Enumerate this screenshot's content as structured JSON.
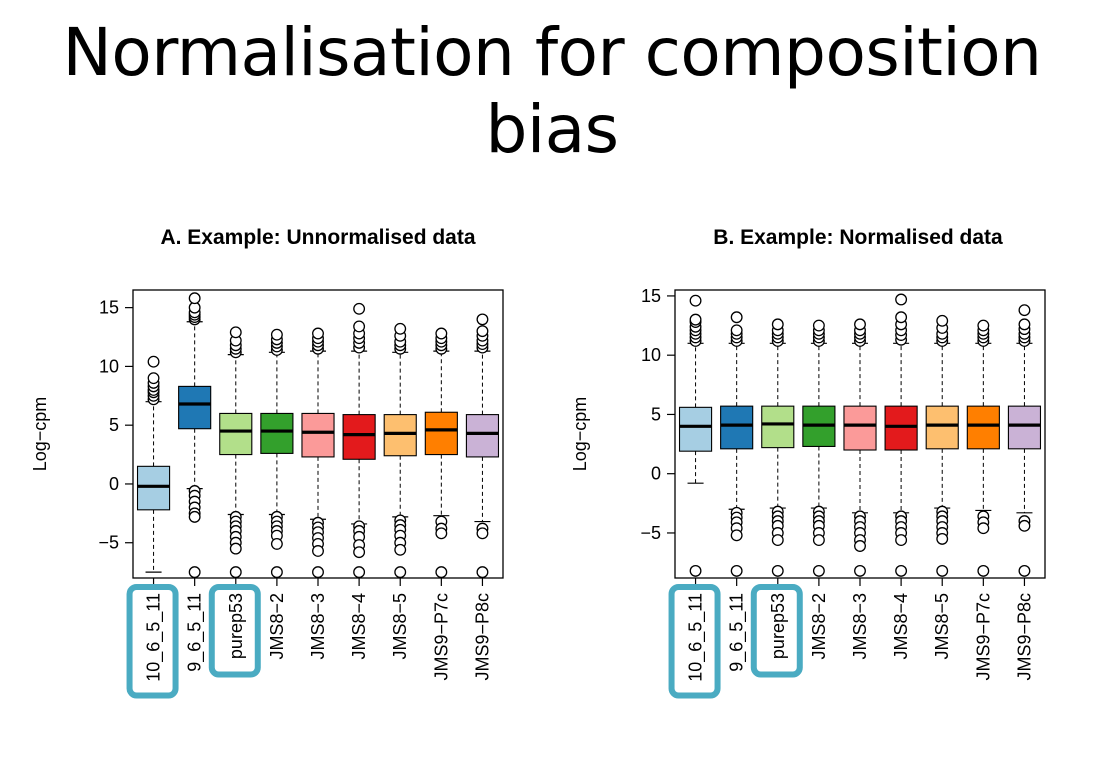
{
  "slide": {
    "title": "Normalisation for composition bias"
  },
  "chart_data": [
    {
      "type": "boxplot",
      "title": "A. Example: Unnormalised data",
      "ylabel": "Log−cpm",
      "xlabel": "",
      "ylim": [
        -8,
        16.5
      ],
      "yticks": [
        -5,
        0,
        5,
        10,
        15
      ],
      "ytick_labels": [
        "−5",
        "0",
        "5",
        "10",
        "15"
      ],
      "grid": false,
      "highlighted_categories": [
        "10_6_5_11",
        "purep53"
      ],
      "highlight_color": "#4aabc2",
      "categories": [
        "10_6_5_11",
        "9_6_5_11",
        "purep53",
        "JMS8−2",
        "JMS8−3",
        "JMS8−4",
        "JMS8−5",
        "JMS9−P7c",
        "JMS9−P8c"
      ],
      "colors": [
        "#a6cee3",
        "#1f78b4",
        "#b2df8a",
        "#33a02c",
        "#fb9a99",
        "#e31a1c",
        "#fdbf6f",
        "#ff7f00",
        "#cab2d6"
      ],
      "series": [
        {
          "q1": -2.2,
          "median": -0.2,
          "q3": 1.5,
          "whisker_low": -7.5,
          "whisker_high": 7.0,
          "outliers_high": [
            7.2,
            7.5,
            7.8,
            8.0,
            8.3,
            8.6,
            9.0,
            10.4
          ],
          "outliers_low": []
        },
        {
          "q1": 4.7,
          "median": 6.8,
          "q3": 8.3,
          "whisker_low": -0.4,
          "whisker_high": 13.8,
          "outliers_high": [
            14.0,
            14.2,
            14.4,
            14.6,
            15.0,
            15.8
          ],
          "outliers_low": [
            -0.6,
            -1.0,
            -1.5,
            -2.0,
            -2.5,
            -2.8,
            -7.5
          ]
        },
        {
          "q1": 2.5,
          "median": 4.5,
          "q3": 6.0,
          "whisker_low": -2.6,
          "whisker_high": 11.0,
          "outliers_high": [
            11.2,
            11.5,
            11.8,
            12.2,
            12.9
          ],
          "outliers_low": [
            -2.8,
            -3.2,
            -3.6,
            -4.0,
            -4.5,
            -5.0,
            -5.5,
            -7.5
          ]
        },
        {
          "q1": 2.6,
          "median": 4.5,
          "q3": 6.0,
          "whisker_low": -2.6,
          "whisker_high": 11.2,
          "outliers_high": [
            11.4,
            11.7,
            12.0,
            12.3,
            12.7
          ],
          "outliers_low": [
            -2.8,
            -3.2,
            -3.6,
            -4.0,
            -4.4,
            -5.1,
            -7.5
          ]
        },
        {
          "q1": 2.3,
          "median": 4.4,
          "q3": 6.0,
          "whisker_low": -3.0,
          "whisker_high": 11.3,
          "outliers_high": [
            11.5,
            11.8,
            12.1,
            12.4,
            12.8
          ],
          "outliers_low": [
            -3.3,
            -3.7,
            -4.1,
            -4.6,
            -5.1,
            -5.7,
            -7.5
          ]
        },
        {
          "q1": 2.1,
          "median": 4.2,
          "q3": 5.9,
          "whisker_low": -3.4,
          "whisker_high": 11.3,
          "outliers_high": [
            11.6,
            12.0,
            12.4,
            12.8,
            13.4,
            14.9
          ],
          "outliers_low": [
            -3.6,
            -4.0,
            -4.5,
            -5.2,
            -5.8,
            -7.5
          ]
        },
        {
          "q1": 2.4,
          "median": 4.3,
          "q3": 5.9,
          "whisker_low": -2.8,
          "whisker_high": 11.2,
          "outliers_high": [
            11.5,
            11.8,
            12.1,
            12.6,
            13.2
          ],
          "outliers_low": [
            -3.1,
            -3.5,
            -3.9,
            -4.4,
            -5.0,
            -5.6,
            -7.5
          ]
        },
        {
          "q1": 2.5,
          "median": 4.6,
          "q3": 6.1,
          "whisker_low": -2.7,
          "whisker_high": 11.3,
          "outliers_high": [
            11.5,
            11.8,
            12.1,
            12.4,
            12.8
          ],
          "outliers_low": [
            -3.2,
            -3.8,
            -4.2,
            -7.5
          ]
        },
        {
          "q1": 2.3,
          "median": 4.3,
          "q3": 5.9,
          "whisker_low": -3.2,
          "whisker_high": 11.3,
          "outliers_high": [
            11.6,
            11.9,
            12.2,
            12.6,
            13.0,
            14.0
          ],
          "outliers_low": [
            -3.8,
            -4.2,
            -7.5
          ]
        }
      ]
    },
    {
      "type": "boxplot",
      "title": "B. Example: Normalised data",
      "ylabel": "Log−cpm",
      "xlabel": "",
      "ylim": [
        -8.8,
        15.5
      ],
      "yticks": [
        -5,
        0,
        5,
        10,
        15
      ],
      "ytick_labels": [
        "−5",
        "0",
        "5",
        "10",
        "15"
      ],
      "grid": false,
      "highlighted_categories": [
        "10_6_5_11",
        "purep53"
      ],
      "highlight_color": "#4aabc2",
      "categories": [
        "10_6_5_11",
        "9_6_5_11",
        "purep53",
        "JMS8−2",
        "JMS8−3",
        "JMS8−4",
        "JMS8−5",
        "JMS9−P7c",
        "JMS9−P8c"
      ],
      "colors": [
        "#a6cee3",
        "#1f78b4",
        "#b2df8a",
        "#33a02c",
        "#fb9a99",
        "#e31a1c",
        "#fdbf6f",
        "#ff7f00",
        "#cab2d6"
      ],
      "series": [
        {
          "q1": 1.9,
          "median": 4.0,
          "q3": 5.6,
          "whisker_low": -0.8,
          "whisker_high": 11.0,
          "outliers_high": [
            11.2,
            11.5,
            11.8,
            12.1,
            12.4,
            12.8,
            13.0,
            14.6
          ],
          "outliers_low": [
            -8.2
          ]
        },
        {
          "q1": 2.1,
          "median": 4.1,
          "q3": 5.7,
          "whisker_low": -3.0,
          "whisker_high": 11.0,
          "outliers_high": [
            11.2,
            11.5,
            11.8,
            12.1,
            13.2
          ],
          "outliers_low": [
            -3.3,
            -3.7,
            -4.1,
            -4.6,
            -5.2,
            -8.2
          ]
        },
        {
          "q1": 2.2,
          "median": 4.2,
          "q3": 5.7,
          "whisker_low": -2.9,
          "whisker_high": 11.0,
          "outliers_high": [
            11.2,
            11.5,
            11.8,
            12.1,
            12.6
          ],
          "outliers_low": [
            -3.2,
            -3.6,
            -4.0,
            -4.4,
            -5.0,
            -5.6,
            -8.2
          ]
        },
        {
          "q1": 2.3,
          "median": 4.1,
          "q3": 5.7,
          "whisker_low": -2.9,
          "whisker_high": 11.0,
          "outliers_high": [
            11.2,
            11.5,
            11.8,
            12.1,
            12.5
          ],
          "outliers_low": [
            -3.2,
            -3.6,
            -4.0,
            -4.4,
            -5.0,
            -5.6,
            -8.2
          ]
        },
        {
          "q1": 2.0,
          "median": 4.1,
          "q3": 5.7,
          "whisker_low": -3.3,
          "whisker_high": 11.0,
          "outliers_high": [
            11.2,
            11.5,
            11.8,
            12.1,
            12.6
          ],
          "outliers_low": [
            -3.6,
            -4.0,
            -4.5,
            -5.0,
            -5.6,
            -6.1,
            -8.2
          ]
        },
        {
          "q1": 2.0,
          "median": 4.0,
          "q3": 5.7,
          "whisker_low": -3.3,
          "whisker_high": 11.0,
          "outliers_high": [
            11.3,
            11.7,
            12.1,
            12.6,
            13.2,
            14.7
          ],
          "outliers_low": [
            -3.6,
            -4.0,
            -4.5,
            -5.0,
            -5.6,
            -8.2
          ]
        },
        {
          "q1": 2.1,
          "median": 4.1,
          "q3": 5.7,
          "whisker_low": -2.9,
          "whisker_high": 11.0,
          "outliers_high": [
            11.2,
            11.5,
            11.8,
            12.3,
            12.9
          ],
          "outliers_low": [
            -3.2,
            -3.6,
            -4.0,
            -4.5,
            -5.0,
            -5.5,
            -8.2
          ]
        },
        {
          "q1": 2.1,
          "median": 4.1,
          "q3": 5.7,
          "whisker_low": -3.1,
          "whisker_high": 11.0,
          "outliers_high": [
            11.2,
            11.5,
            11.8,
            12.1,
            12.5
          ],
          "outliers_low": [
            -3.6,
            -4.1,
            -4.6,
            -8.2
          ]
        },
        {
          "q1": 2.1,
          "median": 4.1,
          "q3": 5.7,
          "whisker_low": -3.3,
          "whisker_high": 11.0,
          "outliers_high": [
            11.2,
            11.5,
            11.8,
            12.2,
            12.6,
            13.8
          ],
          "outliers_low": [
            -4.0,
            -4.4,
            -8.2
          ]
        }
      ]
    }
  ]
}
